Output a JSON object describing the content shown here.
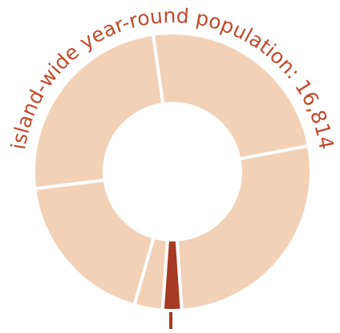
{
  "chart_data": {
    "type": "donut",
    "title": "island-wide year-round population: 16,814",
    "values": [
      24.2,
      26.9,
      2.2,
      3.3,
      18.6,
      24.7
    ],
    "colors": [
      "#f3d1b6",
      "#f3d1b6",
      "#a63a22",
      "#f3d1b6",
      "#f3d1b6",
      "#f3d1b6"
    ]
  }
}
